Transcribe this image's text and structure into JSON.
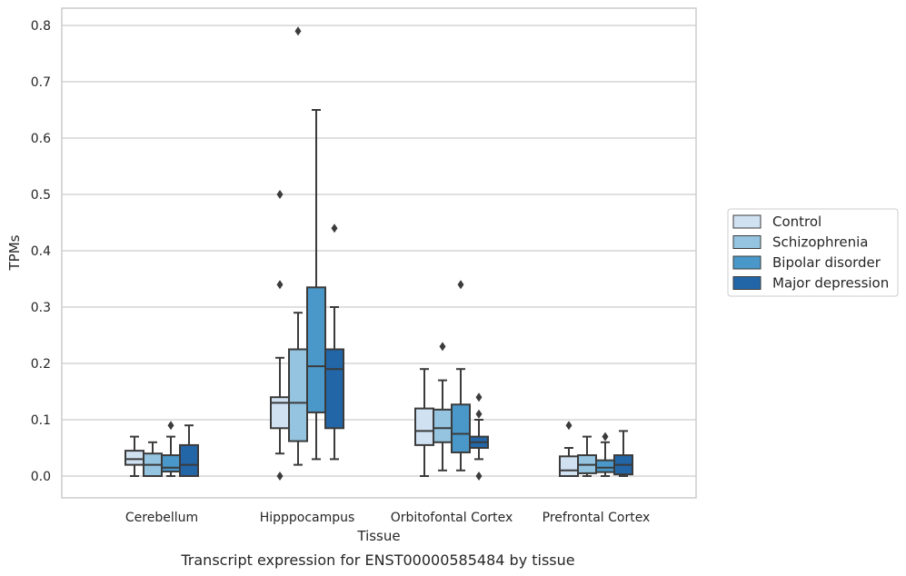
{
  "caption": "Transcript expression for ENST00000585484 by tissue",
  "chart_data": {
    "type": "box",
    "xlabel": "Tissue",
    "ylabel": "TPMs",
    "ylim": [
      -0.04,
      0.83
    ],
    "yticks": [
      0.0,
      0.1,
      0.2,
      0.3,
      0.4,
      0.5,
      0.6,
      0.7,
      0.8
    ],
    "ytick_labels": [
      "0.0",
      "0.1",
      "0.2",
      "0.3",
      "0.4",
      "0.5",
      "0.6",
      "0.7",
      "0.8"
    ],
    "grid": "horizontal",
    "legend_position": "right",
    "categories": [
      "Cerebellum",
      "Hipppocampus",
      "Orbitofontal Cortex",
      "Prefrontal Cortex"
    ],
    "series": [
      {
        "name": "Control",
        "color": "#d0e1f2",
        "boxes": [
          {
            "whislo": 0.0,
            "q1": 0.02,
            "med": 0.03,
            "q3": 0.045,
            "whishi": 0.07,
            "fliers": []
          },
          {
            "whislo": 0.04,
            "q1": 0.085,
            "med": 0.13,
            "q3": 0.14,
            "whishi": 0.21,
            "fliers": [
              0.0,
              0.34,
              0.5
            ]
          },
          {
            "whislo": 0.0,
            "q1": 0.055,
            "med": 0.08,
            "q3": 0.12,
            "whishi": 0.19,
            "fliers": []
          },
          {
            "whislo": 0.0,
            "q1": 0.0,
            "med": 0.01,
            "q3": 0.035,
            "whishi": 0.05,
            "fliers": [
              0.09
            ]
          }
        ]
      },
      {
        "name": "Schizophrenia",
        "color": "#94c4df",
        "boxes": [
          {
            "whislo": 0.0,
            "q1": 0.0,
            "med": 0.02,
            "q3": 0.04,
            "whishi": 0.06,
            "fliers": []
          },
          {
            "whislo": 0.02,
            "q1": 0.062,
            "med": 0.13,
            "q3": 0.225,
            "whishi": 0.29,
            "fliers": [
              0.79
            ]
          },
          {
            "whislo": 0.01,
            "q1": 0.06,
            "med": 0.085,
            "q3": 0.118,
            "whishi": 0.17,
            "fliers": [
              0.23
            ]
          },
          {
            "whislo": 0.0,
            "q1": 0.005,
            "med": 0.02,
            "q3": 0.037,
            "whishi": 0.07,
            "fliers": []
          }
        ]
      },
      {
        "name": "Bipolar disorder",
        "color": "#4a98c9",
        "boxes": [
          {
            "whislo": 0.0,
            "q1": 0.008,
            "med": 0.015,
            "q3": 0.037,
            "whishi": 0.07,
            "fliers": [
              0.09
            ]
          },
          {
            "whislo": 0.03,
            "q1": 0.113,
            "med": 0.195,
            "q3": 0.335,
            "whishi": 0.65,
            "fliers": []
          },
          {
            "whislo": 0.01,
            "q1": 0.042,
            "med": 0.075,
            "q3": 0.127,
            "whishi": 0.19,
            "fliers": [
              0.34
            ]
          },
          {
            "whislo": 0.0,
            "q1": 0.007,
            "med": 0.015,
            "q3": 0.028,
            "whishi": 0.06,
            "fliers": [
              0.07
            ]
          }
        ]
      },
      {
        "name": "Major depression",
        "color": "#2366a8",
        "boxes": [
          {
            "whislo": 0.0,
            "q1": 0.0,
            "med": 0.02,
            "q3": 0.055,
            "whishi": 0.09,
            "fliers": []
          },
          {
            "whislo": 0.03,
            "q1": 0.085,
            "med": 0.19,
            "q3": 0.225,
            "whishi": 0.3,
            "fliers": [
              0.44
            ]
          },
          {
            "whislo": 0.03,
            "q1": 0.05,
            "med": 0.06,
            "q3": 0.07,
            "whishi": 0.1,
            "fliers": [
              0.0,
              0.11,
              0.14
            ]
          },
          {
            "whislo": 0.0,
            "q1": 0.003,
            "med": 0.02,
            "q3": 0.037,
            "whishi": 0.08,
            "fliers": []
          }
        ]
      }
    ]
  }
}
